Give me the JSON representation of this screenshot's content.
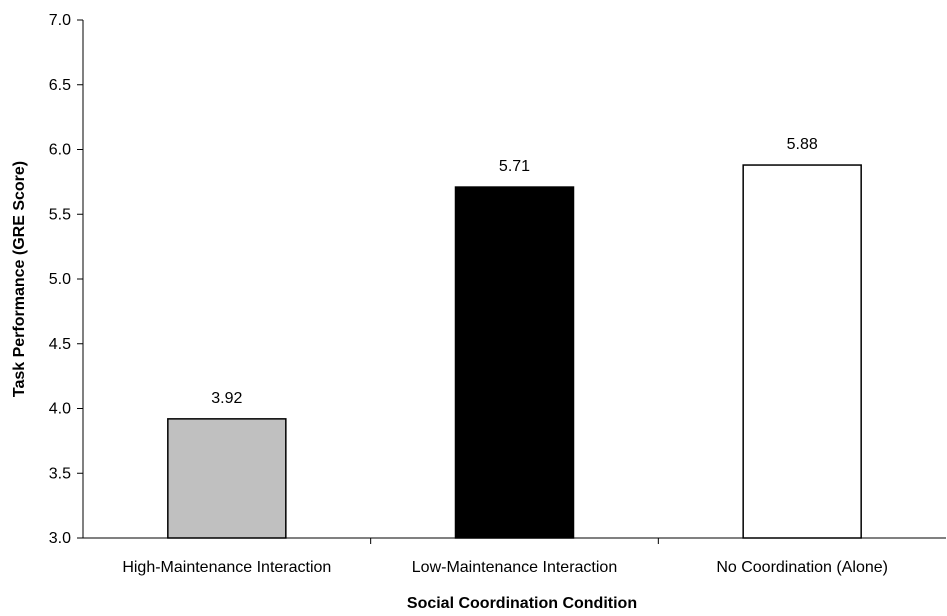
{
  "chart_data": {
    "type": "bar",
    "title": "",
    "xlabel": "Social Coordination Condition",
    "ylabel": "Task Performance (GRE Score)",
    "ylim": [
      3.0,
      7.0
    ],
    "yticks": [
      "3.0",
      "3.5",
      "4.0",
      "4.5",
      "5.0",
      "5.5",
      "6.0",
      "6.5",
      "7.0"
    ],
    "categories": [
      "High-Maintenance Interaction",
      "Low-Maintenance Interaction",
      "No Coordination (Alone)"
    ],
    "values": [
      3.92,
      5.71,
      5.88
    ],
    "data_labels": [
      "3.92",
      "5.71",
      "5.88"
    ],
    "bar_colors": [
      "#c0c0c0",
      "#000000",
      "#ffffff"
    ],
    "bar_edge_color": "#000000",
    "grid": false,
    "legend": "none"
  }
}
